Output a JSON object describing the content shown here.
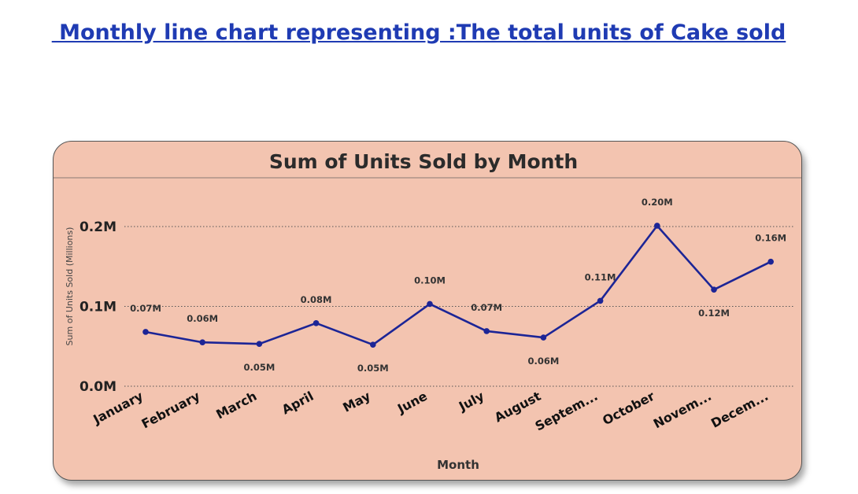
{
  "heading": " Monthly line chart representing :The total units of Cake sold",
  "colors": {
    "heading": "#1f3bb3",
    "card_background": "#f3c4b0",
    "line": "#1c2596",
    "gridline": "#555555"
  },
  "chart_data": {
    "type": "line",
    "title": "Sum of Units Sold by Month",
    "xlabel": "Month",
    "ylabel": "Sum of Units Sold (Millions)",
    "ylim": [
      0,
      0.2
    ],
    "yticks": [
      {
        "value": 0.0,
        "label": "0.0M"
      },
      {
        "value": 0.1,
        "label": "0.1M"
      },
      {
        "value": 0.2,
        "label": "0.2M"
      }
    ],
    "grid": "horizontal dotted",
    "categories": [
      "January",
      "February",
      "March",
      "April",
      "May",
      "June",
      "July",
      "August",
      "Septem...",
      "October",
      "Novem...",
      "Decem..."
    ],
    "values": [
      0.068,
      0.055,
      0.053,
      0.079,
      0.052,
      0.103,
      0.069,
      0.061,
      0.107,
      0.201,
      0.121,
      0.156
    ],
    "data_labels": [
      "0.07M",
      "0.06M",
      "0.05M",
      "0.08M",
      "0.05M",
      "0.10M",
      "0.07M",
      "0.06M",
      "0.11M",
      "0.20M",
      "0.12M",
      "0.16M"
    ]
  }
}
